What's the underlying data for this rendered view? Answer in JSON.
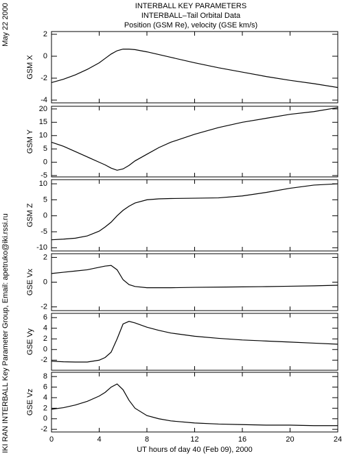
{
  "header": {
    "title": "INTERBALL KEY PARAMETERS",
    "subtitle": "INTERBALL–Tail Orbital Data",
    "description": "Position (GSM Re), velocity (GSE km/s)",
    "date": "May 22 2000",
    "credit": "IKI RAN INTERBALL Key Parameter Group, Email: apetruko@iki.rssi.ru"
  },
  "chart_data": [
    {
      "type": "line",
      "ylabel": "GSM X",
      "color": "#000000",
      "xlim": [
        0,
        24
      ],
      "xticks": [
        0,
        4,
        8,
        12,
        16,
        20,
        24
      ],
      "ylim": [
        -4.25,
        2.25
      ],
      "yticks": [
        -4,
        -2,
        0,
        2
      ],
      "x": [
        0,
        1,
        2,
        3,
        4,
        4.5,
        5,
        5.5,
        6,
        6.5,
        7,
        8,
        9,
        10,
        12,
        14,
        16,
        18,
        20,
        22,
        24
      ],
      "values": [
        -2.4,
        -2.1,
        -1.7,
        -1.2,
        -0.6,
        -0.2,
        0.2,
        0.5,
        0.65,
        0.65,
        0.6,
        0.4,
        0.15,
        -0.1,
        -0.6,
        -1.05,
        -1.45,
        -1.85,
        -2.2,
        -2.5,
        -2.85
      ]
    },
    {
      "type": "line",
      "ylabel": "GSM Y",
      "color": "#000000",
      "xlim": [
        0,
        24
      ],
      "xticks": [
        0,
        4,
        8,
        12,
        16,
        20,
        24
      ],
      "ylim": [
        -5.5,
        21
      ],
      "yticks": [
        -5,
        0,
        5,
        10,
        15,
        20
      ],
      "x": [
        0,
        1,
        2,
        3,
        4,
        4.5,
        5,
        5.5,
        6,
        6.5,
        7,
        8,
        9,
        10,
        12,
        14,
        16,
        18,
        20,
        22,
        24
      ],
      "values": [
        7.5,
        6,
        4,
        2,
        0,
        -1,
        -2.2,
        -3,
        -2.5,
        -1.2,
        0.5,
        3,
        5.5,
        7.5,
        10.5,
        13,
        15,
        16.5,
        18,
        19,
        20.5
      ]
    },
    {
      "type": "line",
      "ylabel": "GSM Z",
      "color": "#000000",
      "xlim": [
        0,
        24
      ],
      "xticks": [
        0,
        4,
        8,
        12,
        16,
        20,
        24
      ],
      "ylim": [
        -11,
        11.3
      ],
      "yticks": [
        -10,
        -5,
        0,
        5,
        10
      ],
      "x": [
        0,
        1,
        2,
        3,
        4,
        4.5,
        5,
        5.5,
        6,
        6.5,
        7,
        8,
        9,
        10,
        12,
        14,
        16,
        18,
        20,
        22,
        24
      ],
      "values": [
        -7.5,
        -7.3,
        -7,
        -6.3,
        -4.8,
        -3.5,
        -2,
        0,
        1.7,
        3,
        4,
        5,
        5.3,
        5.4,
        5.5,
        5.6,
        6.2,
        7.3,
        8.6,
        9.6,
        10
      ]
    },
    {
      "type": "line",
      "ylabel": "GSE Vx",
      "color": "#000000",
      "xlim": [
        0,
        24
      ],
      "xticks": [
        0,
        4,
        8,
        12,
        16,
        20,
        24
      ],
      "ylim": [
        -2.3,
        2.3
      ],
      "yticks": [
        -2,
        0,
        2
      ],
      "x": [
        0,
        1,
        2,
        3,
        4,
        4.5,
        5,
        5.5,
        6,
        6.5,
        7,
        8,
        9,
        10,
        12,
        14,
        16,
        18,
        20,
        22,
        24
      ],
      "values": [
        0.7,
        0.8,
        0.9,
        1.0,
        1.2,
        1.3,
        1.35,
        1.0,
        0.2,
        -0.2,
        -0.35,
        -0.45,
        -0.45,
        -0.45,
        -0.42,
        -0.4,
        -0.38,
        -0.36,
        -0.33,
        -0.3,
        -0.25
      ]
    },
    {
      "type": "line",
      "ylabel": "GSE Vy",
      "color": "#000000",
      "xlim": [
        0,
        24
      ],
      "xticks": [
        0,
        4,
        8,
        12,
        16,
        20,
        24
      ],
      "ylim": [
        -3.9,
        6.8
      ],
      "yticks": [
        -2,
        0,
        2,
        4,
        6
      ],
      "x": [
        0,
        1,
        2,
        3,
        4,
        4.5,
        5,
        5.5,
        6,
        6.5,
        7,
        8,
        9,
        10,
        12,
        14,
        16,
        18,
        20,
        22,
        24
      ],
      "values": [
        -2.2,
        -2.3,
        -2.35,
        -2.35,
        -2.0,
        -1.5,
        -0.5,
        2,
        4.8,
        5.3,
        5,
        4.2,
        3.6,
        3.1,
        2.5,
        2.1,
        1.8,
        1.6,
        1.4,
        1.2,
        1.0
      ]
    },
    {
      "type": "line",
      "ylabel": "GSE Vz",
      "color": "#000000",
      "xlim": [
        0,
        24
      ],
      "xticks": [
        0,
        4,
        8,
        12,
        16,
        20,
        24
      ],
      "ylim": [
        -2.5,
        8.8
      ],
      "yticks": [
        -2,
        0,
        2,
        4,
        6,
        8
      ],
      "xlabel": "UT hours of day  40 (Feb 09), 2000",
      "x": [
        0,
        1,
        2,
        3,
        4,
        4.5,
        5,
        5.5,
        6,
        6.5,
        7,
        8,
        9,
        10,
        12,
        14,
        16,
        18,
        20,
        22,
        24
      ],
      "values": [
        1.8,
        2.1,
        2.6,
        3.3,
        4.3,
        5,
        6,
        6.6,
        5.5,
        3.5,
        2,
        0.6,
        0,
        -0.4,
        -0.8,
        -1,
        -1.1,
        -1.2,
        -1.2,
        -1.3,
        -1.3
      ]
    }
  ]
}
